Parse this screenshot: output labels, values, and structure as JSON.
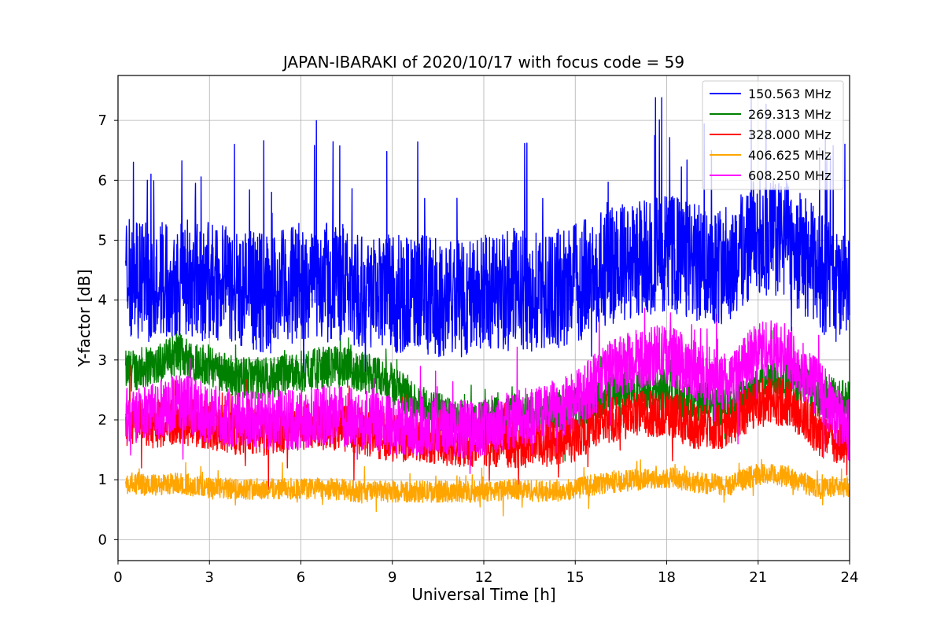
{
  "chart_data": {
    "type": "line",
    "title": "JAPAN-IBARAKI of 2020/10/17 with focus code = 59",
    "xlabel": "Universal Time [h]",
    "ylabel": "Y-factor [dB]",
    "xlim": [
      0,
      24
    ],
    "ylim": [
      -0.35,
      7.75
    ],
    "xticks": [
      0,
      3,
      6,
      9,
      12,
      15,
      18,
      21,
      24
    ],
    "yticks": [
      0,
      1,
      2,
      3,
      4,
      5,
      6,
      7
    ],
    "grid": true,
    "legend_position": "top-right",
    "data_start_h": 0.25,
    "series": [
      {
        "name": "150.563 MHz",
        "color": "#0000ff",
        "x": [
          0.25,
          1,
          2,
          3,
          4,
          5,
          6,
          7,
          8,
          9,
          10,
          11,
          12,
          13,
          14,
          15,
          16,
          17,
          18,
          19,
          20,
          21,
          22,
          23,
          24
        ],
        "mean": [
          4.4,
          4.3,
          4.4,
          4.3,
          4.2,
          4.1,
          4.3,
          4.3,
          4.2,
          4.1,
          4.1,
          4.0,
          4.1,
          4.2,
          4.1,
          4.3,
          4.5,
          4.7,
          4.8,
          4.6,
          4.6,
          5.1,
          5.0,
          4.5,
          4.0
        ],
        "spread": 1.0,
        "max": 7.38
      },
      {
        "name": "269.313 MHz",
        "color": "#008000",
        "x": [
          0.25,
          1,
          2,
          3,
          4,
          5,
          6,
          7,
          8,
          9,
          10,
          11,
          12,
          13,
          14,
          15,
          16,
          17,
          18,
          19,
          20,
          21,
          22,
          23,
          24
        ],
        "mean": [
          2.8,
          2.9,
          3.1,
          2.9,
          2.7,
          2.7,
          2.8,
          2.9,
          2.8,
          2.6,
          2.2,
          2.0,
          2.0,
          2.1,
          2.1,
          2.2,
          2.4,
          2.5,
          2.5,
          2.3,
          2.2,
          2.6,
          2.7,
          2.4,
          2.3
        ],
        "spread": 0.35
      },
      {
        "name": "328.000 MHz",
        "color": "#ff0000",
        "x": [
          0.25,
          1,
          2,
          3,
          4,
          5,
          6,
          7,
          8,
          9,
          10,
          11,
          12,
          13,
          14,
          15,
          16,
          17,
          18,
          19,
          20,
          21,
          22,
          23,
          24
        ],
        "mean": [
          2.0,
          1.9,
          2.0,
          1.9,
          1.8,
          1.8,
          1.9,
          1.9,
          1.8,
          1.7,
          1.7,
          1.6,
          1.6,
          1.6,
          1.6,
          1.7,
          2.0,
          2.1,
          2.1,
          1.9,
          1.9,
          2.3,
          2.3,
          1.8,
          1.6
        ],
        "spread": 0.4
      },
      {
        "name": "406.625 MHz",
        "color": "#ffa500",
        "x": [
          0.25,
          1,
          2,
          3,
          4,
          5,
          6,
          7,
          8,
          9,
          10,
          11,
          12,
          13,
          14,
          15,
          16,
          17,
          18,
          19,
          20,
          21,
          22,
          23,
          24
        ],
        "mean": [
          0.95,
          0.9,
          0.95,
          0.85,
          0.85,
          0.85,
          0.85,
          0.85,
          0.8,
          0.8,
          0.8,
          0.8,
          0.8,
          0.85,
          0.8,
          0.85,
          0.95,
          1.0,
          1.05,
          0.95,
          0.9,
          1.1,
          1.05,
          0.85,
          0.9
        ],
        "spread": 0.18
      },
      {
        "name": "608.250 MHz",
        "color": "#ff00ff",
        "x": [
          0.25,
          1,
          2,
          3,
          4,
          5,
          6,
          7,
          8,
          9,
          10,
          11,
          12,
          13,
          14,
          15,
          16,
          17,
          18,
          19,
          20,
          21,
          22,
          23,
          24
        ],
        "mean": [
          2.1,
          2.1,
          2.3,
          2.1,
          2.0,
          2.0,
          2.0,
          2.1,
          2.0,
          1.9,
          1.9,
          1.8,
          1.9,
          2.0,
          2.1,
          2.3,
          2.8,
          3.0,
          3.1,
          2.8,
          2.6,
          3.2,
          3.1,
          2.5,
          1.8
        ],
        "spread": 0.5
      }
    ]
  }
}
